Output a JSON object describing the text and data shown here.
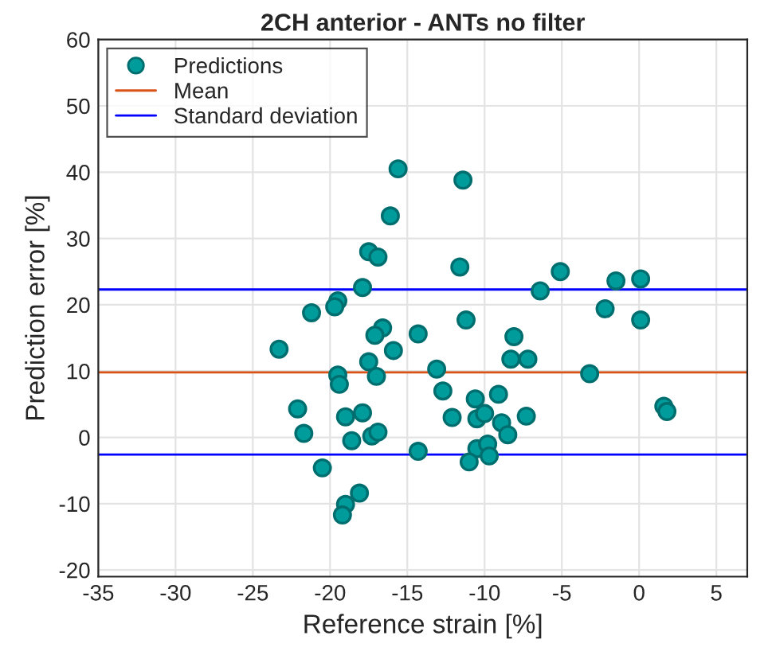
{
  "chart_data": {
    "type": "scatter",
    "title": "2CH anterior - ANTs no filter",
    "xlabel": "Reference strain [%]",
    "ylabel": "Prediction error [%]",
    "series": [
      {
        "name": "Predictions",
        "color": "#009b9b",
        "x": [
          -15.6,
          -16.1,
          -17.5,
          -16.9,
          -17.9,
          -19.5,
          -19.7,
          -21.2,
          -23.3,
          -16.6,
          -17.1,
          -15.9,
          -17.5,
          -19.5,
          -19.4,
          -17.0,
          -22.1,
          -21.7,
          -19.0,
          -17.9,
          -18.6,
          -17.3,
          -16.9,
          -20.5,
          -18.1,
          -19.0,
          -19.2,
          -11.4,
          -11.6,
          -6.4,
          -5.1,
          -1.5,
          0.1,
          -2.2,
          0.1,
          -11.2,
          -14.3,
          -8.1,
          -8.3,
          -7.2,
          -13.1,
          -3.2,
          -12.7,
          -10.6,
          -9.1,
          -12.1,
          -10.5,
          -10.0,
          -8.9,
          -7.3,
          -8.5,
          -14.3,
          -10.5,
          -9.8,
          -9.7,
          -11.0,
          1.6,
          1.8
        ],
        "values": [
          40.5,
          33.4,
          28.0,
          27.2,
          22.6,
          20.6,
          19.7,
          18.8,
          13.3,
          16.5,
          15.4,
          13.1,
          11.4,
          9.4,
          8.0,
          9.2,
          4.3,
          0.6,
          3.1,
          3.7,
          -0.5,
          0.2,
          0.8,
          -4.6,
          -8.4,
          -10.1,
          -11.7,
          38.8,
          25.7,
          22.1,
          25.0,
          23.6,
          23.9,
          19.4,
          17.7,
          17.7,
          15.6,
          15.2,
          11.8,
          11.8,
          10.3,
          9.6,
          7.0,
          5.8,
          6.5,
          3.0,
          2.8,
          3.6,
          2.2,
          3.2,
          0.4,
          -2.1,
          -1.7,
          -1.0,
          -2.8,
          -3.7,
          4.7,
          3.9
        ]
      }
    ],
    "ref_lines": [
      {
        "axis": "y",
        "value": 9.8,
        "label": "Mean",
        "color": "#d95319"
      },
      {
        "axis": "y",
        "value": 22.3,
        "label": "Standard deviation",
        "color": "#0000ff"
      },
      {
        "axis": "y",
        "value": -2.6,
        "label": null,
        "color": "#0000ff"
      }
    ],
    "xlim": [
      -35,
      7
    ],
    "xticks": [
      -35,
      -30,
      -25,
      -20,
      -15,
      -10,
      -5,
      0,
      5
    ],
    "ylim": [
      -21,
      60
    ],
    "yticks": [
      -20,
      -10,
      0,
      10,
      20,
      30,
      40,
      50,
      60
    ],
    "grid": true,
    "legend": "top left",
    "marker": "circle"
  }
}
